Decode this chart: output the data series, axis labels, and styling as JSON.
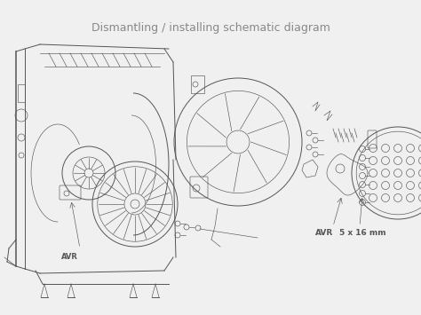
{
  "title": "Dismantling / installing schematic diagram",
  "title_fontsize": 9,
  "title_color": "#888888",
  "background_color": "#f0f0f0",
  "line_color": "#555555",
  "label_avr_left": "AVR",
  "label_avr_right": "AVR",
  "label_screw": "5 x 16 mm",
  "fig_width": 4.74,
  "fig_height": 3.55,
  "dpi": 100,
  "lw_main": 0.7,
  "lw_thin": 0.45,
  "lw_thick": 1.1
}
